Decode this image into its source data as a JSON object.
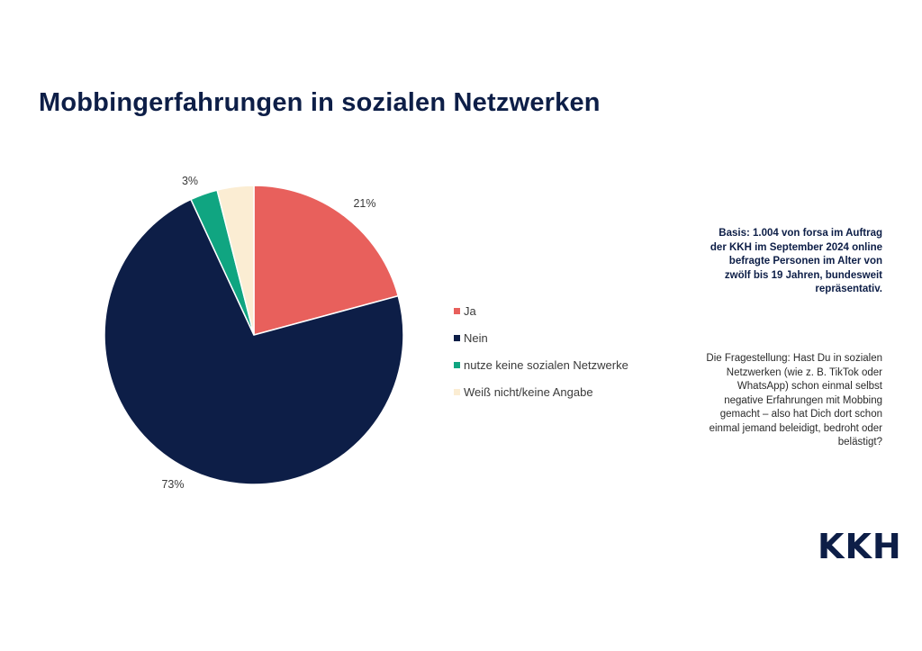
{
  "chart_data": {
    "type": "pie",
    "title": "Mobbingerfahrungen in sozialen Netzwerken",
    "slices": [
      {
        "name": "Ja",
        "value": 21,
        "label": "21%",
        "color": "#e8605c"
      },
      {
        "name": "Nein",
        "value": 73,
        "label": "73%",
        "color": "#0d1e47"
      },
      {
        "name": "nutze keine sozialen Netzwerke",
        "value": 3,
        "label": "3%",
        "color": "#10a581"
      },
      {
        "name": "Weiß nicht/keine Angabe",
        "value": 4,
        "label": "",
        "color": "#fbedd3"
      }
    ],
    "legend_position": "right"
  },
  "notes": {
    "basis": "Basis: 1.004 von forsa im Auftrag der KKH im September 2024 online befragte Personen im Alter von zwölf bis 19 Jahren, bundesweit repräsentativ.",
    "question": "Die Fragestellung: Hast Du in sozialen Netzwerken (wie z. B. TikTok oder WhatsApp) schon einmal selbst negative Erfahrungen mit Mobbing gemacht – also hat Dich dort schon einmal jemand beleidigt, bedroht oder belästigt?"
  },
  "logo": {
    "text": "KKH"
  }
}
